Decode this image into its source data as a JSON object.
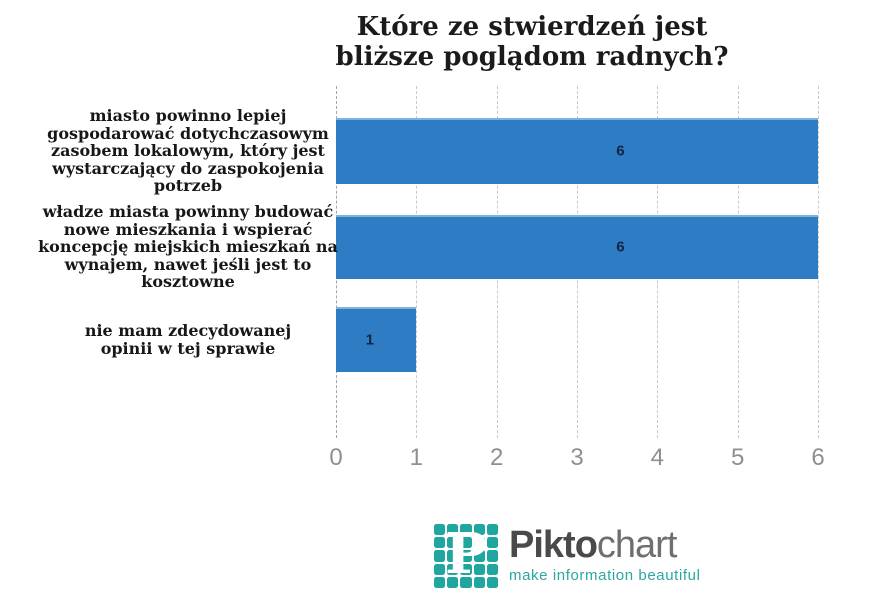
{
  "chart_data": {
    "type": "bar",
    "orientation": "horizontal",
    "title": "Które ze stwierdzeń jest\nbliższe poglądom radnych?",
    "categories": [
      "miasto powinno lepiej\ngospodarować dotychczasowym\nzasobem lokalowym, który jest\nwystarczający do zaspokojenia\npotrzeb",
      "władze miasta powinny budować\nnowe mieszkania i wspierać\nkoncepcję miejskich mieszkań na\nwynajem, nawet jeśli jest to\nkosztowne",
      "nie mam zdecydowanej\nopinii w tej sprawie"
    ],
    "values": [
      6,
      6,
      1
    ],
    "value_labels": [
      "6",
      "6",
      "1"
    ],
    "xlabel": "",
    "ylabel": "",
    "xlim": [
      0,
      6
    ],
    "x_ticks": [
      "0",
      "1",
      "2",
      "3",
      "4",
      "5",
      "6"
    ],
    "grid": "vertical-dashed",
    "legend": "none",
    "bar_color": "#2e7cc3",
    "bar_top_highlight": "#7fb2dd",
    "value_label_color": "#132540",
    "tick_label_color": "#8f8f8f",
    "label_x_pct": [
      59,
      59,
      7
    ]
  },
  "footer": {
    "logo_letter": "P",
    "brand_bold": "Pikto",
    "brand_light": "chart",
    "tagline": "make information beautiful",
    "brand_teal": "#1ea69f"
  }
}
